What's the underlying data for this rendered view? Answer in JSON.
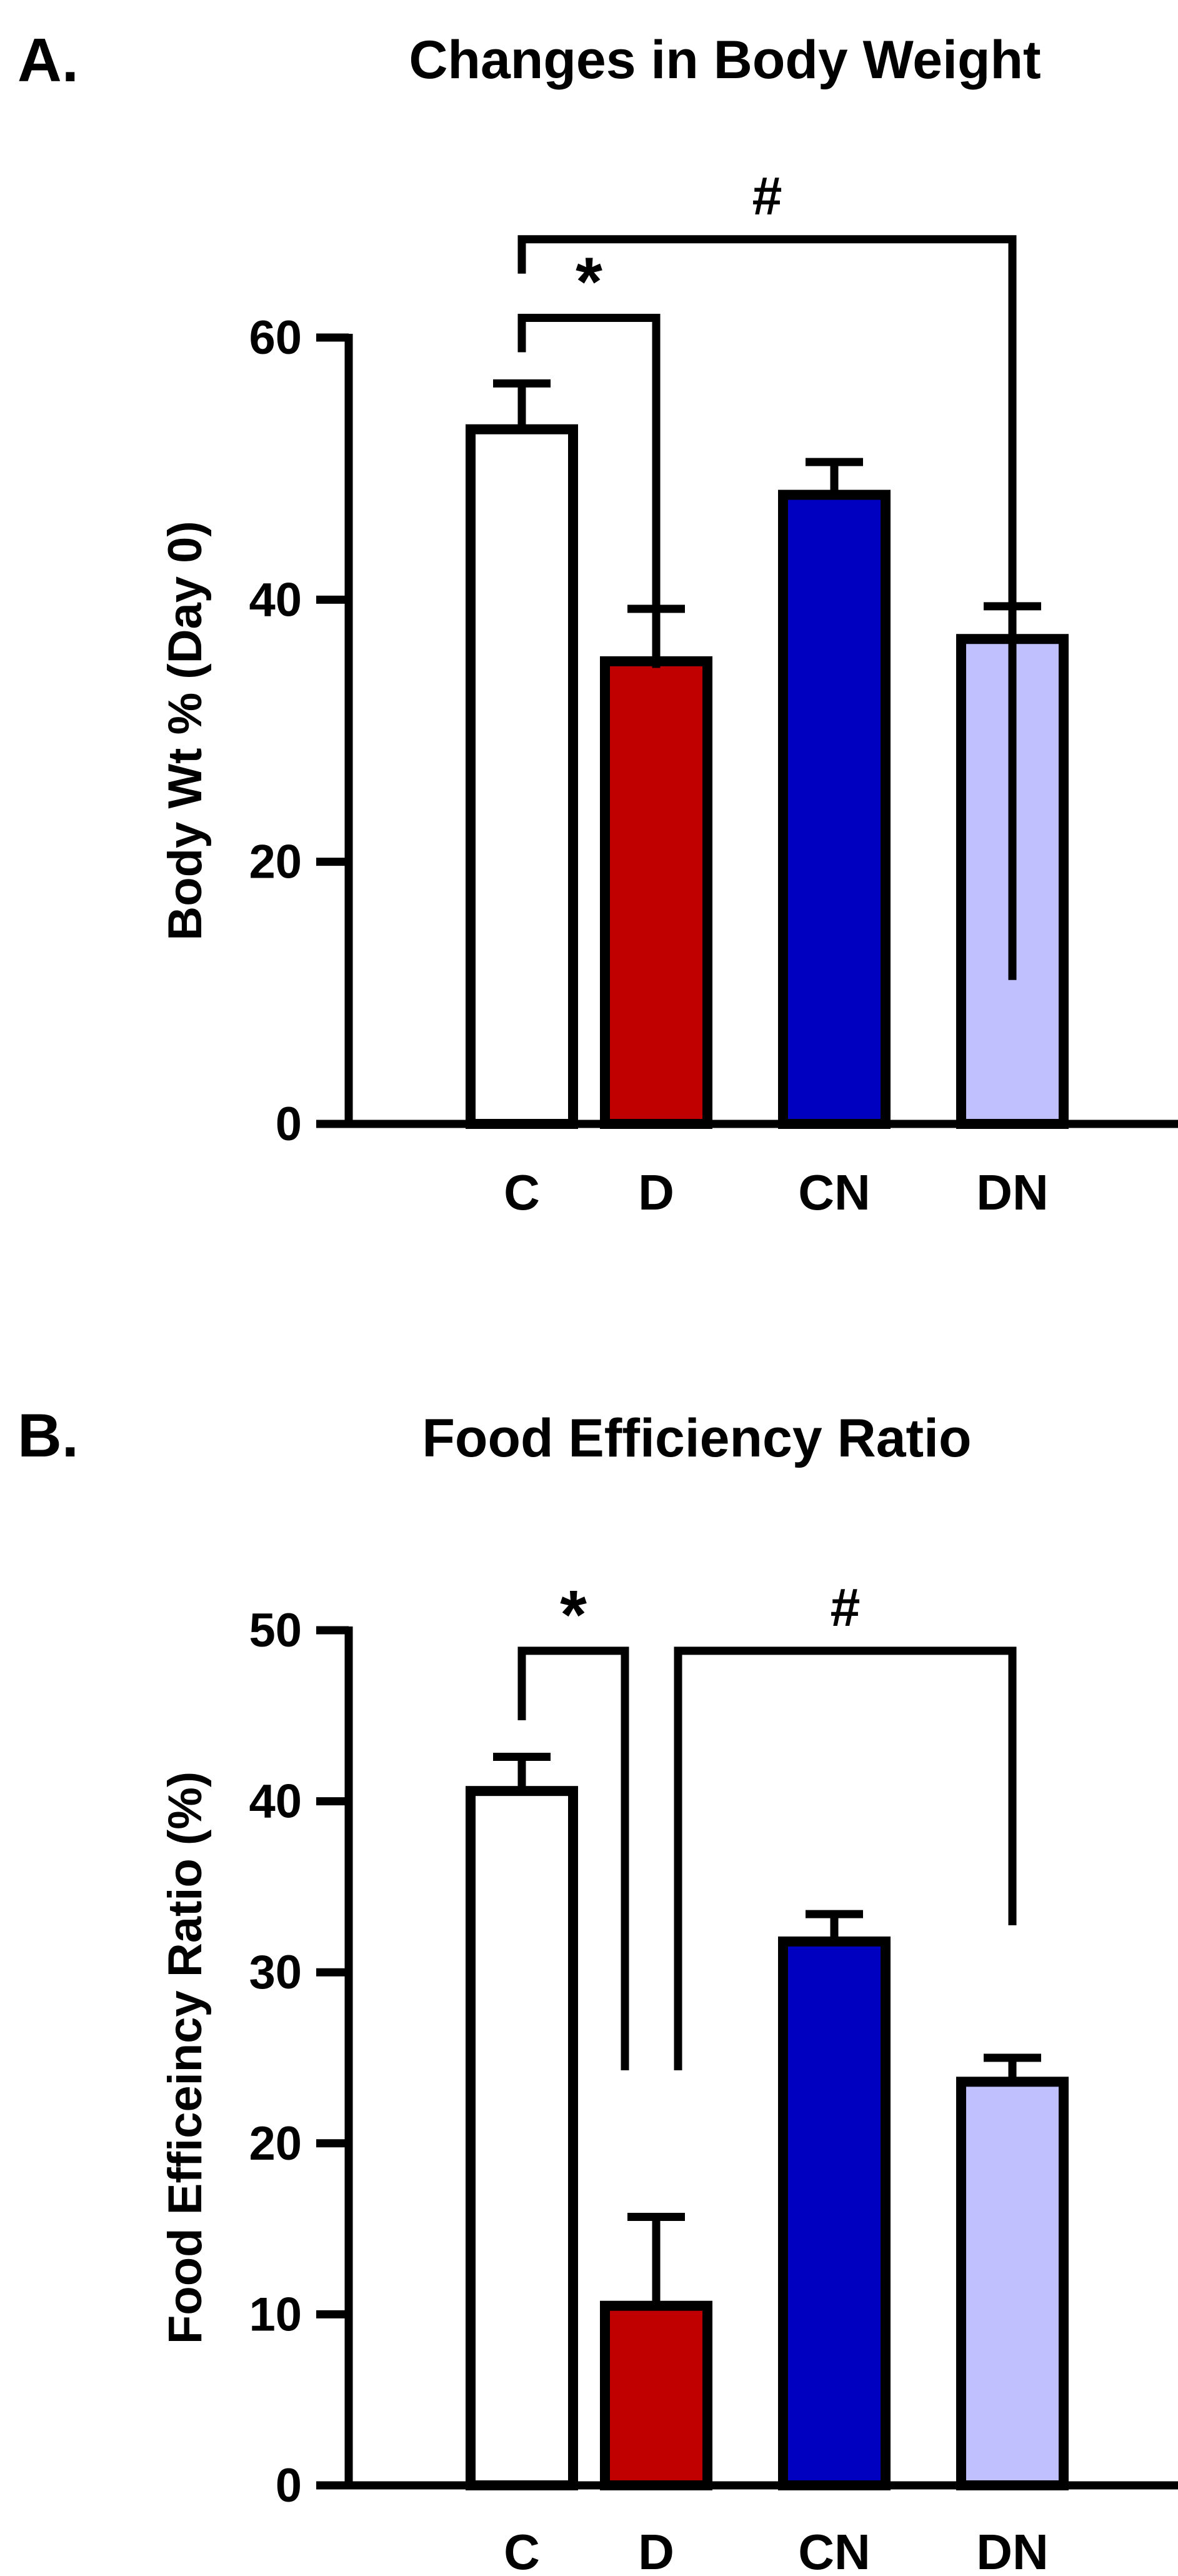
{
  "chart_data": [
    {
      "type": "bar",
      "panel_label": "A.",
      "title": "Changes in Body Weight",
      "xlabel": "",
      "ylabel": "Body Wt % (Day 0)",
      "categories": [
        "C",
        "D",
        "CN",
        "DN"
      ],
      "values": [
        53,
        35.3,
        48,
        37
      ],
      "errors": [
        3.5,
        4,
        2.5,
        2.5
      ],
      "colors": [
        "#ffffff",
        "#c00000",
        "#0000c0",
        "#c0c0ff"
      ],
      "ylim": [
        0,
        60
      ],
      "yticks": [
        0,
        20,
        40,
        60
      ],
      "ytick_labels": [
        "0",
        "20",
        "40",
        "60"
      ],
      "grid": false,
      "significance": [
        {
          "from": 0,
          "to": 1,
          "symbol": "*",
          "level": 61.5
        },
        {
          "from": 0,
          "to": 3,
          "symbol": "#",
          "level": 67.5
        }
      ]
    },
    {
      "type": "bar",
      "panel_label": "B.",
      "title": "Food Efficiency Ratio",
      "xlabel": "",
      "ylabel": "Food Efficeincy Ratio (%)",
      "categories": [
        "C",
        "D",
        "CN",
        "DN"
      ],
      "values": [
        40.6,
        10.5,
        31.8,
        23.6
      ],
      "errors": [
        2,
        5.2,
        1.6,
        1.4
      ],
      "colors": [
        "#ffffff",
        "#c00000",
        "#0000c0",
        "#c0c0ff"
      ],
      "ylim": [
        0,
        50
      ],
      "yticks": [
        0,
        10,
        20,
        30,
        40,
        50
      ],
      "ytick_labels": [
        "0",
        "10",
        "20",
        "30",
        "40",
        "50"
      ],
      "grid": false,
      "significance": [
        {
          "from": 0,
          "to": 1,
          "symbol": "*",
          "level": 48.8
        },
        {
          "from": 1,
          "to": 3,
          "symbol": "#",
          "level": 48.8
        }
      ]
    }
  ]
}
